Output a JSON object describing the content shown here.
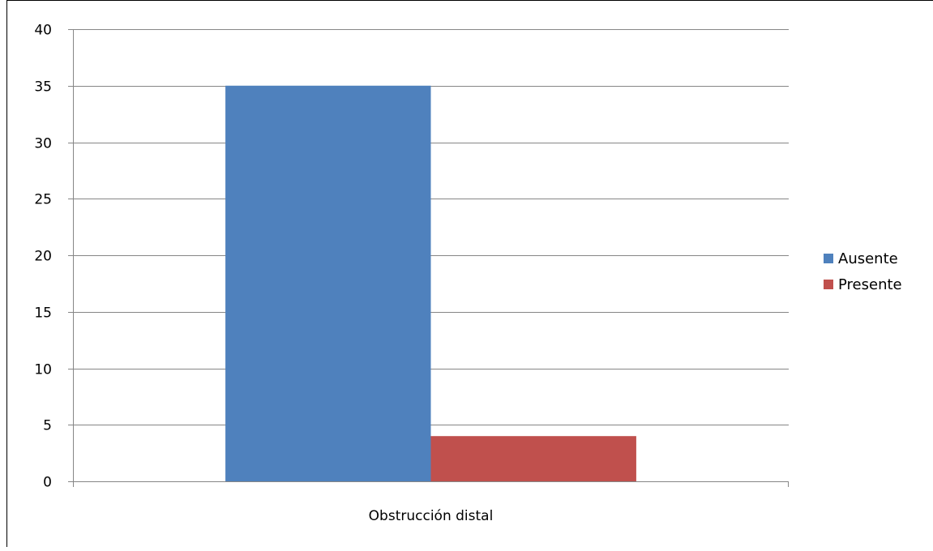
{
  "chart_data": {
    "type": "bar",
    "categories": [
      "Obstrucción distal"
    ],
    "series": [
      {
        "name": "Ausente",
        "values": [
          35
        ],
        "color": "#4f81bd"
      },
      {
        "name": "Presente",
        "values": [
          4
        ],
        "color": "#c0504d"
      }
    ],
    "ylim": [
      0,
      40
    ],
    "yticks": [
      0,
      5,
      10,
      15,
      20,
      25,
      30,
      35,
      40
    ],
    "grid": true,
    "legend_position": "right",
    "title": "",
    "xlabel": "",
    "ylabel": ""
  },
  "colors": {
    "gridline": "#868686",
    "frame": "#000000",
    "tick_text": "#000000"
  }
}
